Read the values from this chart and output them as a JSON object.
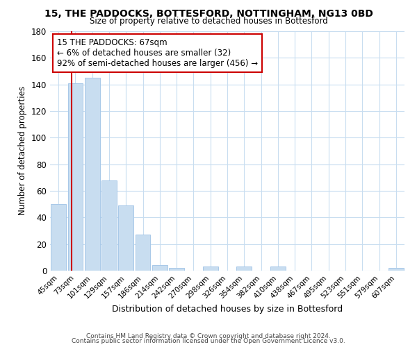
{
  "title": "15, THE PADDOCKS, BOTTESFORD, NOTTINGHAM, NG13 0BD",
  "subtitle": "Size of property relative to detached houses in Bottesford",
  "xlabel": "Distribution of detached houses by size in Bottesford",
  "ylabel": "Number of detached properties",
  "bar_color": "#c8ddf0",
  "bar_edge_color": "#a8c8e8",
  "highlight_line_color": "#cc0000",
  "categories": [
    "45sqm",
    "73sqm",
    "101sqm",
    "129sqm",
    "157sqm",
    "186sqm",
    "214sqm",
    "242sqm",
    "270sqm",
    "298sqm",
    "326sqm",
    "354sqm",
    "382sqm",
    "410sqm",
    "438sqm",
    "467sqm",
    "495sqm",
    "523sqm",
    "551sqm",
    "579sqm",
    "607sqm"
  ],
  "values": [
    50,
    141,
    145,
    68,
    49,
    27,
    4,
    2,
    0,
    3,
    0,
    3,
    0,
    3,
    0,
    0,
    0,
    0,
    0,
    0,
    2
  ],
  "ylim": [
    0,
    180
  ],
  "yticks": [
    0,
    20,
    40,
    60,
    80,
    100,
    120,
    140,
    160,
    180
  ],
  "annotation_title": "15 THE PADDOCKS: 67sqm",
  "annotation_line1": "← 6% of detached houses are smaller (32)",
  "annotation_line2": "92% of semi-detached houses are larger (456) →",
  "footer_line1": "Contains HM Land Registry data © Crown copyright and database right 2024.",
  "footer_line2": "Contains public sector information licensed under the Open Government Licence v3.0.",
  "background_color": "#ffffff",
  "grid_color": "#c8ddf0"
}
